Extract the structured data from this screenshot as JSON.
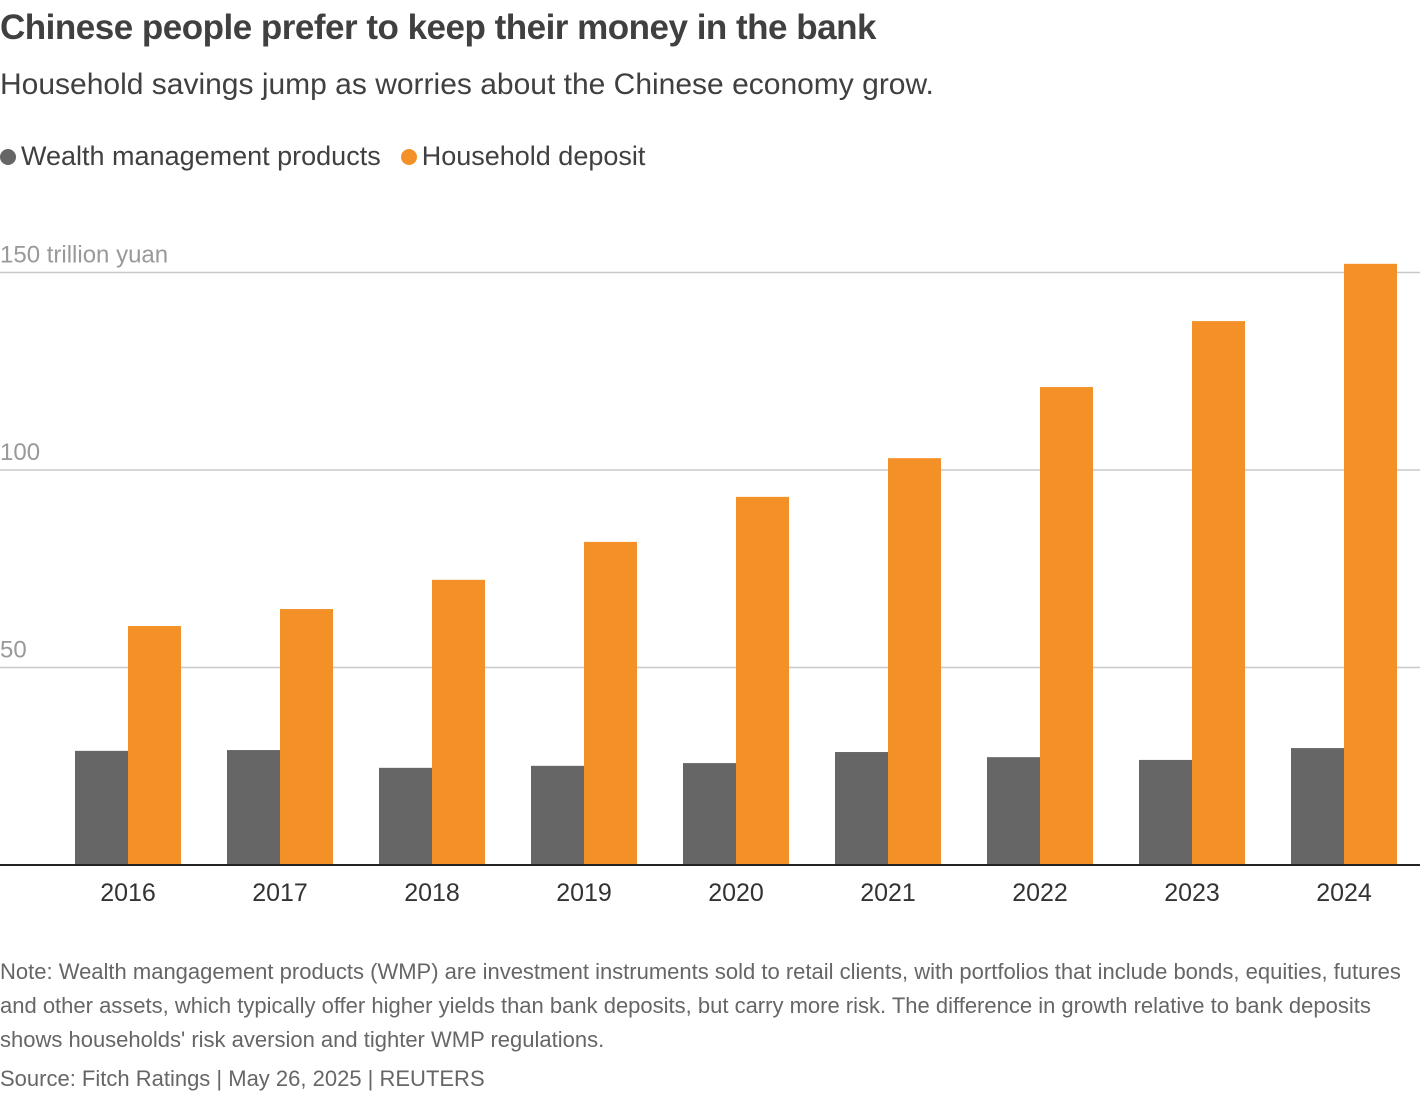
{
  "chart_data": {
    "type": "bar",
    "title": "Chinese people prefer to keep their money in the bank",
    "subtitle": "Household savings jump as worries about the Chinese economy grow.",
    "categories": [
      "2016",
      "2017",
      "2018",
      "2019",
      "2020",
      "2021",
      "2022",
      "2023",
      "2024"
    ],
    "series": [
      {
        "name": "Wealth management products",
        "color": "#666666",
        "values": [
          28.9,
          29.1,
          24.6,
          25.1,
          25.8,
          28.6,
          27.3,
          26.6,
          29.6
        ]
      },
      {
        "name": "Household deposit",
        "color": "#f39128",
        "values": [
          60.5,
          64.8,
          72.2,
          81.8,
          93.2,
          103.0,
          121.0,
          137.7,
          152.2
        ]
      }
    ],
    "ylim": [
      0,
      155
    ],
    "yticks": [
      {
        "value": 50,
        "label": "50"
      },
      {
        "value": 100,
        "label": "100"
      },
      {
        "value": 150,
        "label": "150 trillion yuan"
      }
    ],
    "grid": true,
    "note": "Note: Wealth mangagement products (WMP) are investment instruments sold to retail clients, with portfolios that include bonds, equities, futures and other assets, which typically offer higher yields than bank deposits, but carry more risk. The difference in growth relative to bank deposits shows households' risk aversion and tighter WMP regulations.",
    "source": "Source: Fitch Ratings | May 26, 2025 | REUTERS"
  }
}
